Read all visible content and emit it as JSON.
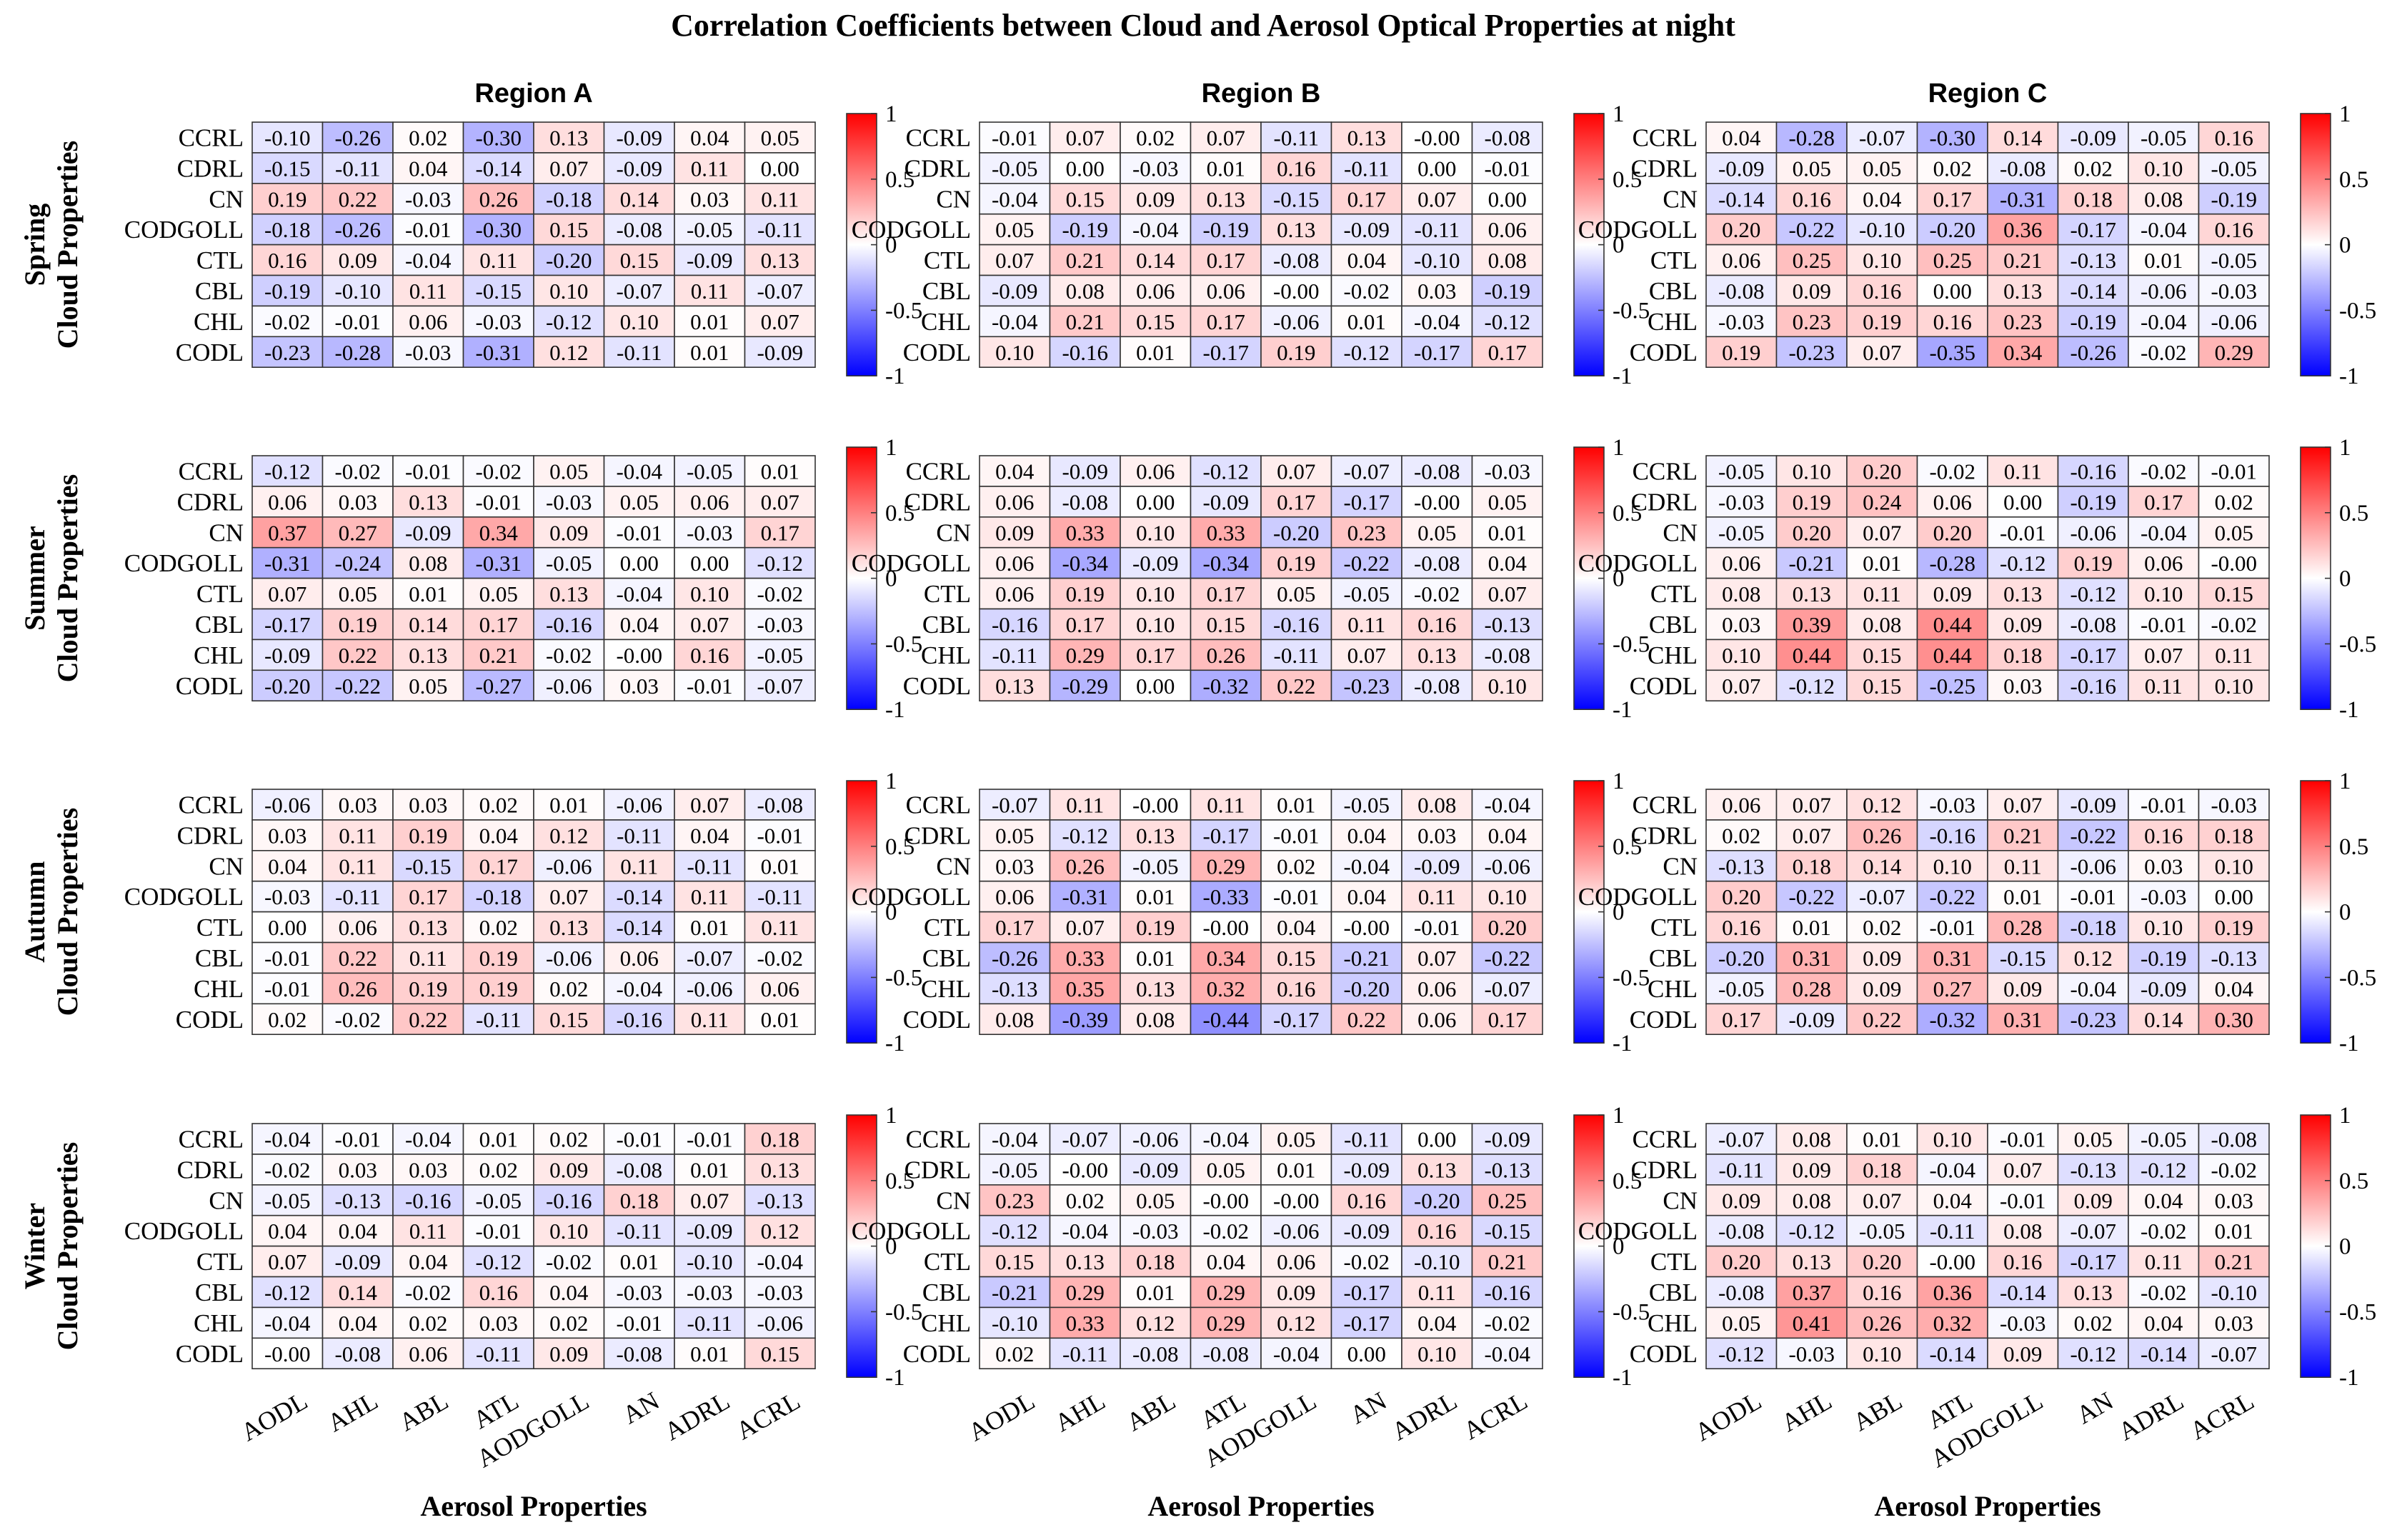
{
  "chart_data": {
    "type": "heatmap",
    "title": "Correlation Coefficients between Cloud and Aerosol Optical Properties at night",
    "regions": [
      "Region A",
      "Region B",
      "Region C"
    ],
    "seasons": [
      "Spring",
      "Summer",
      "Autumn",
      "Winter"
    ],
    "season_ylabel_suffix": "Cloud Properties",
    "xlabel": "Aerosol Properties",
    "rows": [
      "CCRL",
      "CDRL",
      "CN",
      "CODGOLL",
      "CTL",
      "CBL",
      "CHL",
      "CODL"
    ],
    "cols": [
      "AODL",
      "AHL",
      "ABL",
      "ATL",
      "AODGOLL",
      "AN",
      "ADRL",
      "ACRL"
    ],
    "colorbar": {
      "min": -1,
      "max": 1,
      "ticks": [
        1,
        0.5,
        0,
        -0.5,
        -1
      ],
      "tick_labels": [
        "1",
        "0.5",
        "0",
        "-0.5",
        "-1"
      ],
      "colors": {
        "negative": "#0000ff",
        "neutral": "#ffffff",
        "positive": "#ff0000"
      }
    },
    "labels": {
      "Spring": {
        "Region A": [
          [
            "-0.10",
            "-0.26",
            "0.02",
            "-0.30",
            "0.13",
            "-0.09",
            "0.04",
            "0.05"
          ],
          [
            "-0.15",
            "-0.11",
            "0.04",
            "-0.14",
            "0.07",
            "-0.09",
            "0.11",
            "0.00"
          ],
          [
            "0.19",
            "0.22",
            "-0.03",
            "0.26",
            "-0.18",
            "0.14",
            "0.03",
            "0.11"
          ],
          [
            "-0.18",
            "-0.26",
            "-0.01",
            "-0.30",
            "0.15",
            "-0.08",
            "-0.05",
            "-0.11"
          ],
          [
            "0.16",
            "0.09",
            "-0.04",
            "0.11",
            "-0.20",
            "0.15",
            "-0.09",
            "0.13"
          ],
          [
            "-0.19",
            "-0.10",
            "0.11",
            "-0.15",
            "0.10",
            "-0.07",
            "0.11",
            "-0.07"
          ],
          [
            "-0.02",
            "-0.01",
            "0.06",
            "-0.03",
            "-0.12",
            "0.10",
            "0.01",
            "0.07"
          ],
          [
            "-0.23",
            "-0.28",
            "-0.03",
            "-0.31",
            "0.12",
            "-0.11",
            "0.01",
            "-0.09"
          ]
        ],
        "Region B": [
          [
            "-0.01",
            "0.07",
            "0.02",
            "0.07",
            "-0.11",
            "0.13",
            "-0.00",
            "-0.08"
          ],
          [
            "-0.05",
            "0.00",
            "-0.03",
            "0.01",
            "0.16",
            "-0.11",
            "0.00",
            "-0.01"
          ],
          [
            "-0.04",
            "0.15",
            "0.09",
            "0.13",
            "-0.15",
            "0.17",
            "0.07",
            "0.00"
          ],
          [
            "0.05",
            "-0.19",
            "-0.04",
            "-0.19",
            "0.13",
            "-0.09",
            "-0.11",
            "0.06"
          ],
          [
            "0.07",
            "0.21",
            "0.14",
            "0.17",
            "-0.08",
            "0.04",
            "-0.10",
            "0.08"
          ],
          [
            "-0.09",
            "0.08",
            "0.06",
            "0.06",
            "-0.00",
            "-0.02",
            "0.03",
            "-0.19"
          ],
          [
            "-0.04",
            "0.21",
            "0.15",
            "0.17",
            "-0.06",
            "0.01",
            "-0.04",
            "-0.12"
          ],
          [
            "0.10",
            "-0.16",
            "0.01",
            "-0.17",
            "0.19",
            "-0.12",
            "-0.17",
            "0.17"
          ]
        ],
        "Region C": [
          [
            "0.04",
            "-0.28",
            "-0.07",
            "-0.30",
            "0.14",
            "-0.09",
            "-0.05",
            "0.16"
          ],
          [
            "-0.09",
            "0.05",
            "0.05",
            "0.02",
            "-0.08",
            "0.02",
            "0.10",
            "-0.05"
          ],
          [
            "-0.14",
            "0.16",
            "0.04",
            "0.17",
            "-0.31",
            "0.18",
            "0.08",
            "-0.19"
          ],
          [
            "0.20",
            "-0.22",
            "-0.10",
            "-0.20",
            "0.36",
            "-0.17",
            "-0.04",
            "0.16"
          ],
          [
            "0.06",
            "0.25",
            "0.10",
            "0.25",
            "0.21",
            "-0.13",
            "0.01",
            "-0.05"
          ],
          [
            "-0.08",
            "0.09",
            "0.16",
            "0.00",
            "0.13",
            "-0.14",
            "-0.06",
            "-0.03"
          ],
          [
            "-0.03",
            "0.23",
            "0.19",
            "0.16",
            "0.23",
            "-0.19",
            "-0.04",
            "-0.06"
          ],
          [
            "0.19",
            "-0.23",
            "0.07",
            "-0.35",
            "0.34",
            "-0.26",
            "-0.02",
            "0.29"
          ]
        ]
      },
      "Summer": {
        "Region A": [
          [
            "-0.12",
            "-0.02",
            "-0.01",
            "-0.02",
            "0.05",
            "-0.04",
            "-0.05",
            "0.01"
          ],
          [
            "0.06",
            "0.03",
            "0.13",
            "-0.01",
            "-0.03",
            "0.05",
            "0.06",
            "0.07"
          ],
          [
            "0.37",
            "0.27",
            "-0.09",
            "0.34",
            "0.09",
            "-0.01",
            "-0.03",
            "0.17"
          ],
          [
            "-0.31",
            "-0.24",
            "0.08",
            "-0.31",
            "-0.05",
            "0.00",
            "0.00",
            "-0.12"
          ],
          [
            "0.07",
            "0.05",
            "0.01",
            "0.05",
            "0.13",
            "-0.04",
            "0.10",
            "-0.02"
          ],
          [
            "-0.17",
            "0.19",
            "0.14",
            "0.17",
            "-0.16",
            "0.04",
            "0.07",
            "-0.03"
          ],
          [
            "-0.09",
            "0.22",
            "0.13",
            "0.21",
            "-0.02",
            "-0.00",
            "0.16",
            "-0.05"
          ],
          [
            "-0.20",
            "-0.22",
            "0.05",
            "-0.27",
            "-0.06",
            "0.03",
            "-0.01",
            "-0.07"
          ]
        ],
        "Region B": [
          [
            "0.04",
            "-0.09",
            "0.06",
            "-0.12",
            "0.07",
            "-0.07",
            "-0.08",
            "-0.03"
          ],
          [
            "0.06",
            "-0.08",
            "0.00",
            "-0.09",
            "0.17",
            "-0.17",
            "-0.00",
            "0.05"
          ],
          [
            "0.09",
            "0.33",
            "0.10",
            "0.33",
            "-0.20",
            "0.23",
            "0.05",
            "0.01"
          ],
          [
            "0.06",
            "-0.34",
            "-0.09",
            "-0.34",
            "0.19",
            "-0.22",
            "-0.08",
            "0.04"
          ],
          [
            "0.06",
            "0.19",
            "0.10",
            "0.17",
            "0.05",
            "-0.05",
            "-0.02",
            "0.07"
          ],
          [
            "-0.16",
            "0.17",
            "0.10",
            "0.15",
            "-0.16",
            "0.11",
            "0.16",
            "-0.13"
          ],
          [
            "-0.11",
            "0.29",
            "0.17",
            "0.26",
            "-0.11",
            "0.07",
            "0.13",
            "-0.08"
          ],
          [
            "0.13",
            "-0.29",
            "0.00",
            "-0.32",
            "0.22",
            "-0.23",
            "-0.08",
            "0.10"
          ]
        ],
        "Region C": [
          [
            "-0.05",
            "0.10",
            "0.20",
            "-0.02",
            "0.11",
            "-0.16",
            "-0.02",
            "-0.01"
          ],
          [
            "-0.03",
            "0.19",
            "0.24",
            "0.06",
            "0.00",
            "-0.19",
            "0.17",
            "0.02"
          ],
          [
            "-0.05",
            "0.20",
            "0.07",
            "0.20",
            "-0.01",
            "-0.06",
            "-0.04",
            "0.05"
          ],
          [
            "0.06",
            "-0.21",
            "0.01",
            "-0.28",
            "-0.12",
            "0.19",
            "0.06",
            "-0.00"
          ],
          [
            "0.08",
            "0.13",
            "0.11",
            "0.09",
            "0.13",
            "-0.12",
            "0.10",
            "0.15"
          ],
          [
            "0.03",
            "0.39",
            "0.08",
            "0.44",
            "0.09",
            "-0.08",
            "-0.01",
            "-0.02"
          ],
          [
            "0.10",
            "0.44",
            "0.15",
            "0.44",
            "0.18",
            "-0.17",
            "0.07",
            "0.11"
          ],
          [
            "0.07",
            "-0.12",
            "0.15",
            "-0.25",
            "0.03",
            "-0.16",
            "0.11",
            "0.10"
          ]
        ]
      },
      "Autumn": {
        "Region A": [
          [
            "-0.06",
            "0.03",
            "0.03",
            "0.02",
            "0.01",
            "-0.06",
            "0.07",
            "-0.08"
          ],
          [
            "0.03",
            "0.11",
            "0.19",
            "0.04",
            "0.12",
            "-0.11",
            "0.04",
            "-0.01"
          ],
          [
            "0.04",
            "0.11",
            "-0.15",
            "0.17",
            "-0.06",
            "0.11",
            "-0.11",
            "0.01"
          ],
          [
            "-0.03",
            "-0.11",
            "0.17",
            "-0.18",
            "0.07",
            "-0.14",
            "0.11",
            "-0.11"
          ],
          [
            "0.00",
            "0.06",
            "0.13",
            "0.02",
            "0.13",
            "-0.14",
            "0.01",
            "0.11"
          ],
          [
            "-0.01",
            "0.22",
            "0.11",
            "0.19",
            "-0.06",
            "0.06",
            "-0.07",
            "-0.02"
          ],
          [
            "-0.01",
            "0.26",
            "0.19",
            "0.19",
            "0.02",
            "-0.04",
            "-0.06",
            "0.06"
          ],
          [
            "0.02",
            "-0.02",
            "0.22",
            "-0.11",
            "0.15",
            "-0.16",
            "0.11",
            "0.01"
          ]
        ],
        "Region B": [
          [
            "-0.07",
            "0.11",
            "-0.00",
            "0.11",
            "0.01",
            "-0.05",
            "0.08",
            "-0.04"
          ],
          [
            "0.05",
            "-0.12",
            "0.13",
            "-0.17",
            "-0.01",
            "0.04",
            "0.03",
            "0.04"
          ],
          [
            "0.03",
            "0.26",
            "-0.05",
            "0.29",
            "0.02",
            "-0.04",
            "-0.09",
            "-0.06"
          ],
          [
            "0.06",
            "-0.31",
            "0.01",
            "-0.33",
            "-0.01",
            "0.04",
            "0.11",
            "0.10"
          ],
          [
            "0.17",
            "0.07",
            "0.19",
            "-0.00",
            "0.04",
            "-0.00",
            "-0.01",
            "0.20"
          ],
          [
            "-0.26",
            "0.33",
            "0.01",
            "0.34",
            "0.15",
            "-0.21",
            "0.07",
            "-0.22"
          ],
          [
            "-0.13",
            "0.35",
            "0.13",
            "0.32",
            "0.16",
            "-0.20",
            "0.06",
            "-0.07"
          ],
          [
            "0.08",
            "-0.39",
            "0.08",
            "-0.44",
            "-0.17",
            "0.22",
            "0.06",
            "0.17"
          ]
        ],
        "Region C": [
          [
            "0.06",
            "0.07",
            "0.12",
            "-0.03",
            "0.07",
            "-0.09",
            "-0.01",
            "-0.03"
          ],
          [
            "0.02",
            "0.07",
            "0.26",
            "-0.16",
            "0.21",
            "-0.22",
            "0.16",
            "0.18"
          ],
          [
            "-0.13",
            "0.18",
            "0.14",
            "0.10",
            "0.11",
            "-0.06",
            "0.03",
            "0.10"
          ],
          [
            "0.20",
            "-0.22",
            "-0.07",
            "-0.22",
            "0.01",
            "-0.01",
            "-0.03",
            "0.00"
          ],
          [
            "0.16",
            "0.01",
            "0.02",
            "-0.01",
            "0.28",
            "-0.18",
            "0.10",
            "0.19"
          ],
          [
            "-0.20",
            "0.31",
            "0.09",
            "0.31",
            "-0.15",
            "0.12",
            "-0.19",
            "-0.13"
          ],
          [
            "-0.05",
            "0.28",
            "0.09",
            "0.27",
            "0.09",
            "-0.04",
            "-0.09",
            "0.04"
          ],
          [
            "0.17",
            "-0.09",
            "0.22",
            "-0.32",
            "0.31",
            "-0.23",
            "0.14",
            "0.30"
          ]
        ]
      },
      "Winter": {
        "Region A": [
          [
            "-0.04",
            "-0.01",
            "-0.04",
            "0.01",
            "0.02",
            "-0.01",
            "-0.01",
            "0.18"
          ],
          [
            "-0.02",
            "0.03",
            "0.03",
            "0.02",
            "0.09",
            "-0.08",
            "0.01",
            "0.13"
          ],
          [
            "-0.05",
            "-0.13",
            "-0.16",
            "-0.05",
            "-0.16",
            "0.18",
            "0.07",
            "-0.13"
          ],
          [
            "0.04",
            "0.04",
            "0.11",
            "-0.01",
            "0.10",
            "-0.11",
            "-0.09",
            "0.12"
          ],
          [
            "0.07",
            "-0.09",
            "0.04",
            "-0.12",
            "-0.02",
            "0.01",
            "-0.10",
            "-0.04"
          ],
          [
            "-0.12",
            "0.14",
            "-0.02",
            "0.16",
            "0.04",
            "-0.03",
            "-0.03",
            "-0.03"
          ],
          [
            "-0.04",
            "0.04",
            "0.02",
            "0.03",
            "0.02",
            "-0.01",
            "-0.11",
            "-0.06"
          ],
          [
            "-0.00",
            "-0.08",
            "0.06",
            "-0.11",
            "0.09",
            "-0.08",
            "0.01",
            "0.15"
          ]
        ],
        "Region B": [
          [
            "-0.04",
            "-0.07",
            "-0.06",
            "-0.04",
            "0.05",
            "-0.11",
            "0.00",
            "-0.09"
          ],
          [
            "-0.05",
            "-0.00",
            "-0.09",
            "0.05",
            "0.01",
            "-0.09",
            "0.13",
            "-0.13"
          ],
          [
            "0.23",
            "0.02",
            "0.05",
            "-0.00",
            "-0.00",
            "0.16",
            "-0.20",
            "0.25"
          ],
          [
            "-0.12",
            "-0.04",
            "-0.03",
            "-0.02",
            "-0.06",
            "-0.09",
            "0.16",
            "-0.15"
          ],
          [
            "0.15",
            "0.13",
            "0.18",
            "0.04",
            "0.06",
            "-0.02",
            "-0.10",
            "0.21"
          ],
          [
            "-0.21",
            "0.29",
            "0.01",
            "0.29",
            "0.09",
            "-0.17",
            "0.11",
            "-0.16"
          ],
          [
            "-0.10",
            "0.33",
            "0.12",
            "0.29",
            "0.12",
            "-0.17",
            "0.04",
            "-0.02"
          ],
          [
            "0.02",
            "-0.11",
            "-0.08",
            "-0.08",
            "-0.04",
            "0.00",
            "0.10",
            "-0.04"
          ]
        ],
        "Region C": [
          [
            "-0.07",
            "0.08",
            "0.01",
            "0.10",
            "-0.01",
            "0.05",
            "-0.05",
            "-0.08"
          ],
          [
            "-0.11",
            "0.09",
            "0.18",
            "-0.04",
            "0.07",
            "-0.13",
            "-0.12",
            "-0.02"
          ],
          [
            "0.09",
            "0.08",
            "0.07",
            "0.04",
            "-0.01",
            "0.09",
            "0.04",
            "0.03"
          ],
          [
            "-0.08",
            "-0.12",
            "-0.05",
            "-0.11",
            "0.08",
            "-0.07",
            "-0.02",
            "0.01"
          ],
          [
            "0.20",
            "0.13",
            "0.20",
            "-0.00",
            "0.16",
            "-0.17",
            "0.11",
            "0.21"
          ],
          [
            "-0.08",
            "0.37",
            "0.16",
            "0.36",
            "-0.14",
            "0.13",
            "-0.02",
            "-0.10"
          ],
          [
            "0.05",
            "0.41",
            "0.26",
            "0.32",
            "-0.03",
            "0.02",
            "0.04",
            "0.03"
          ],
          [
            "-0.12",
            "-0.03",
            "0.10",
            "-0.14",
            "0.09",
            "-0.12",
            "-0.14",
            "-0.07"
          ]
        ]
      }
    }
  }
}
